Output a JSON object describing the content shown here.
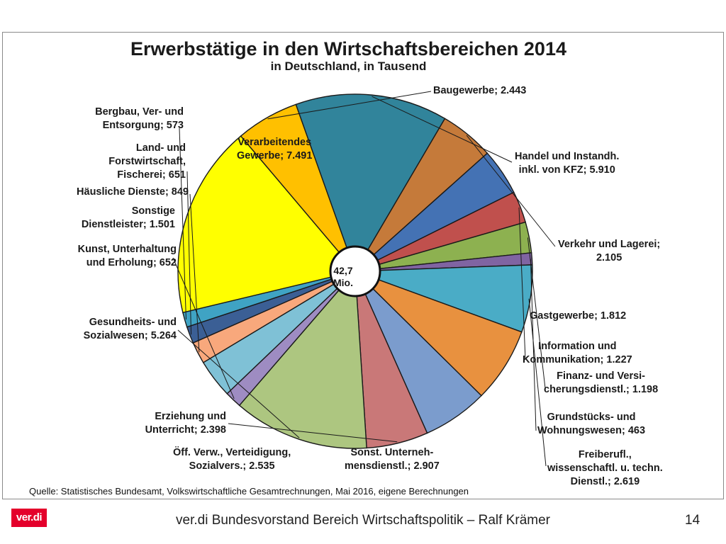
{
  "chart_data": {
    "type": "pie",
    "title": "Erwerbstätige in den Wirtschaftsbereichen 2014",
    "subtitle": "in Deutschland, in Tausend",
    "center_label": "42,7\nMio.",
    "slices": [
      {
        "key": "verarbeitendes",
        "label": "Verarbeitendes\nGewerbe; 7.491",
        "value": 7491,
        "color": "#ffff00"
      },
      {
        "key": "baugewerbe",
        "label": "Baugewerbe; 2.443",
        "value": 2443,
        "color": "#ffc000"
      },
      {
        "key": "handel",
        "label": "Handel und Instandh.\ninkl. von KFZ; 5.910",
        "value": 5910,
        "color": "#31849b"
      },
      {
        "key": "verkehr",
        "label": "Verkehr und Lagerei;\n2.105",
        "value": 2105,
        "color": "#c57a3a"
      },
      {
        "key": "gastgewerbe",
        "label": "Gastgewerbe; 1.812",
        "value": 1812,
        "color": "#4472b4"
      },
      {
        "key": "information",
        "label": "Information und\nKommunikation; 1.227",
        "value": 1227,
        "color": "#c0504d"
      },
      {
        "key": "finanz",
        "label": "Finanz- und Versi-\ncherungsdienstl.; 1.198",
        "value": 1198,
        "color": "#8db150"
      },
      {
        "key": "grundstuecks",
        "label": "Grundstücks- und\nWohnungswesen; 463",
        "value": 463,
        "color": "#8064a2"
      },
      {
        "key": "freiberufl",
        "label": "Freiberufl.,\nwissenschaftl. u. techn.\nDienstl.; 2.619",
        "value": 2619,
        "color": "#4aacc6"
      },
      {
        "key": "sonst-unterneh",
        "label": "Sonst. Unterneh-\nmensdienstl.; 2.907",
        "value": 2907,
        "color": "#e8913f"
      },
      {
        "key": "oeff-verw",
        "label": "Öff. Verw., Verteidigung,\nSozialvers.; 2.535",
        "value": 2535,
        "color": "#7b9ccd"
      },
      {
        "key": "erziehung",
        "label": "Erziehung und\nUnterricht; 2.398",
        "value": 2398,
        "color": "#c97878"
      },
      {
        "key": "gesundheit",
        "label": "Gesundheits- und\nSozialwesen; 5.264",
        "value": 5264,
        "color": "#adc680"
      },
      {
        "key": "kunst",
        "label": "Kunst, Unterhaltung\nund Erholung; 652",
        "value": 652,
        "color": "#9e8cc2"
      },
      {
        "key": "sonstige-dienst",
        "label": "Sonstige\nDienstleister; 1.501",
        "value": 1501,
        "color": "#7fc1d6"
      },
      {
        "key": "haeusliche",
        "label": "Häusliche Dienste; 849",
        "value": 849,
        "color": "#f8a87c"
      },
      {
        "key": "land-forst",
        "label": "Land- und\nForstwirtschaft,\nFischerei; 651",
        "value": 651,
        "color": "#3b5f95"
      },
      {
        "key": "bergbau",
        "label": "Bergbau, Ver- und\nEntsorgung; 573",
        "value": 573,
        "color": "#3fa3c4"
      }
    ]
  },
  "source_note": "Quelle: Statistisches Bundesamt, Volkswirtschaftliche Gesamtrechnungen, Mai 2016, eigene Berechnungen",
  "footer": {
    "logo_text": "ver.di",
    "text": "ver.di Bundesvorstand Bereich Wirtschaftspolitik – Ralf Krämer",
    "page_number": "14"
  }
}
